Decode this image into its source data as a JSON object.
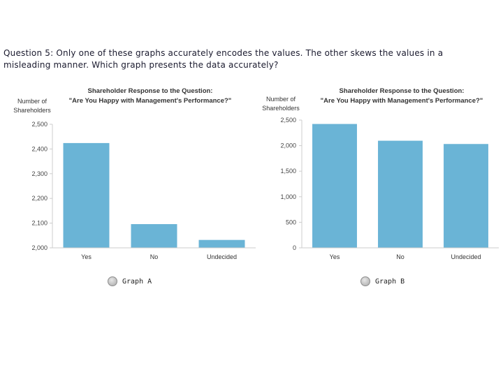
{
  "question": "Question 5: Only one of these graphs accurately encodes the values. The other skews the values in a misleading manner. Which graph presents the data accurately?",
  "colors": {
    "bar": "#6ab4d6",
    "axis": "#cccccc",
    "grid": "#e5e5e5"
  },
  "options": [
    {
      "label": "Graph A"
    },
    {
      "label": "Graph B"
    }
  ],
  "chart_data": [
    {
      "type": "bar",
      "title": "Shareholder Response to the Question:",
      "subtitle": "\"Are You Happy with Management's Performance?\"",
      "ylabel": [
        "Number of",
        "Shareholders"
      ],
      "categories": [
        "Yes",
        "No",
        "Undecided"
      ],
      "values": [
        2424,
        2096,
        2032
      ],
      "ylim": [
        2000,
        2500
      ],
      "yticks": [
        "2,000",
        "2,100",
        "2,200",
        "2,300",
        "2,400",
        "2,500"
      ],
      "ytick_values": [
        2000,
        2100,
        2200,
        2300,
        2400,
        2500
      ]
    },
    {
      "type": "bar",
      "title": "Shareholder Response to the Question:",
      "subtitle": "\"Are You Happy with Management's Performance?\"",
      "ylabel": [
        "Number of",
        "Shareholders"
      ],
      "categories": [
        "Yes",
        "No",
        "Undecided"
      ],
      "values": [
        2424,
        2096,
        2032
      ],
      "ylim": [
        0,
        2500
      ],
      "yticks": [
        "0",
        "500",
        "1,000",
        "1,500",
        "2,000",
        "2,500"
      ],
      "ytick_values": [
        0,
        500,
        1000,
        1500,
        2000,
        2500
      ]
    }
  ]
}
